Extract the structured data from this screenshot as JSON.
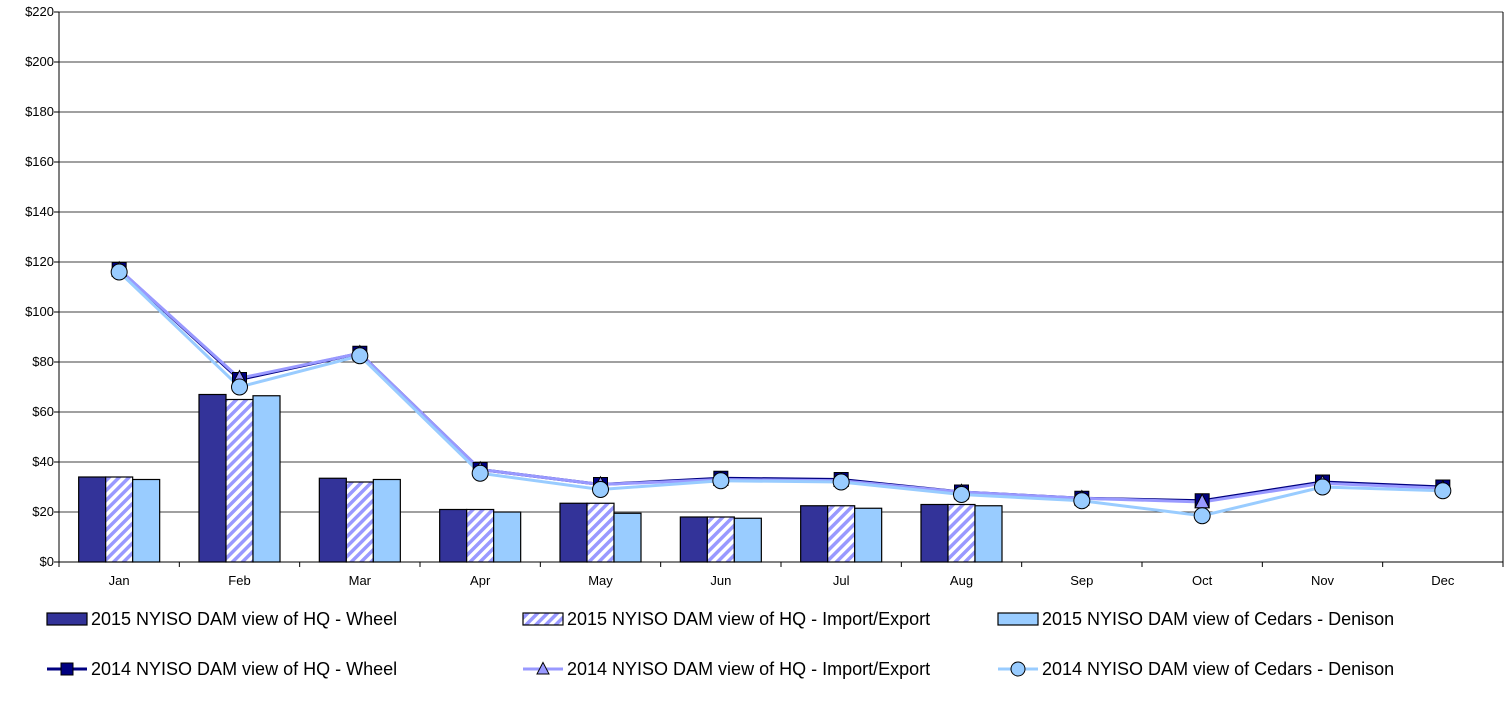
{
  "chart_data": {
    "type": "bar",
    "title": "",
    "xlabel": "",
    "ylabel": "",
    "ylim": [
      0,
      220
    ],
    "yticks": [
      0,
      20,
      40,
      60,
      80,
      100,
      120,
      140,
      160,
      180,
      200,
      220
    ],
    "ytick_labels": [
      "$0",
      "$20",
      "$40",
      "$60",
      "$80",
      "$100",
      "$120",
      "$140",
      "$160",
      "$180",
      "$200",
      "$220"
    ],
    "grid": true,
    "legend_position": "bottom",
    "categories": [
      "Jan",
      "Feb",
      "Mar",
      "Apr",
      "May",
      "Jun",
      "Jul",
      "Aug",
      "Sep",
      "Oct",
      "Nov",
      "Dec"
    ],
    "bar_series": [
      {
        "name": "2015 NYISO DAM view of HQ - Wheel",
        "color": "#333399",
        "pattern": "solid",
        "values": [
          34,
          67,
          33.5,
          21,
          23.5,
          18,
          22.5,
          23,
          null,
          null,
          null,
          null
        ]
      },
      {
        "name": "2015 NYISO DAM view of HQ - Import/Export",
        "color": "#9999ff",
        "pattern": "hatched",
        "values": [
          34,
          65,
          32,
          21,
          23.5,
          18,
          22.5,
          23,
          null,
          null,
          null,
          null
        ]
      },
      {
        "name": "2015 NYISO DAM view of Cedars - Denison",
        "color": "#99ccff",
        "pattern": "solid",
        "values": [
          33,
          66.5,
          33,
          20,
          19.5,
          17.5,
          21.5,
          22.5,
          null,
          null,
          null,
          null
        ]
      }
    ],
    "line_series": [
      {
        "name": "2014 NYISO DAM view of HQ - Wheel",
        "color": "#000080",
        "marker": "square",
        "values": [
          117,
          73,
          83.5,
          37,
          31,
          33.5,
          33,
          28,
          25.5,
          24.5,
          32,
          30
        ]
      },
      {
        "name": "2014 NYISO DAM view of HQ - Import/Export",
        "color": "#9999ff",
        "marker": "triangle",
        "values": [
          117,
          73.5,
          83.5,
          37,
          31,
          33,
          32.5,
          28,
          25.5,
          24,
          31.5,
          29.5
        ]
      },
      {
        "name": "2014 NYISO DAM view of Cedars - Denison",
        "color": "#99ccff",
        "marker": "circle",
        "values": [
          116,
          70,
          82.5,
          35.5,
          29,
          32.5,
          32,
          27,
          24.5,
          18.5,
          30,
          28.5
        ]
      }
    ]
  }
}
